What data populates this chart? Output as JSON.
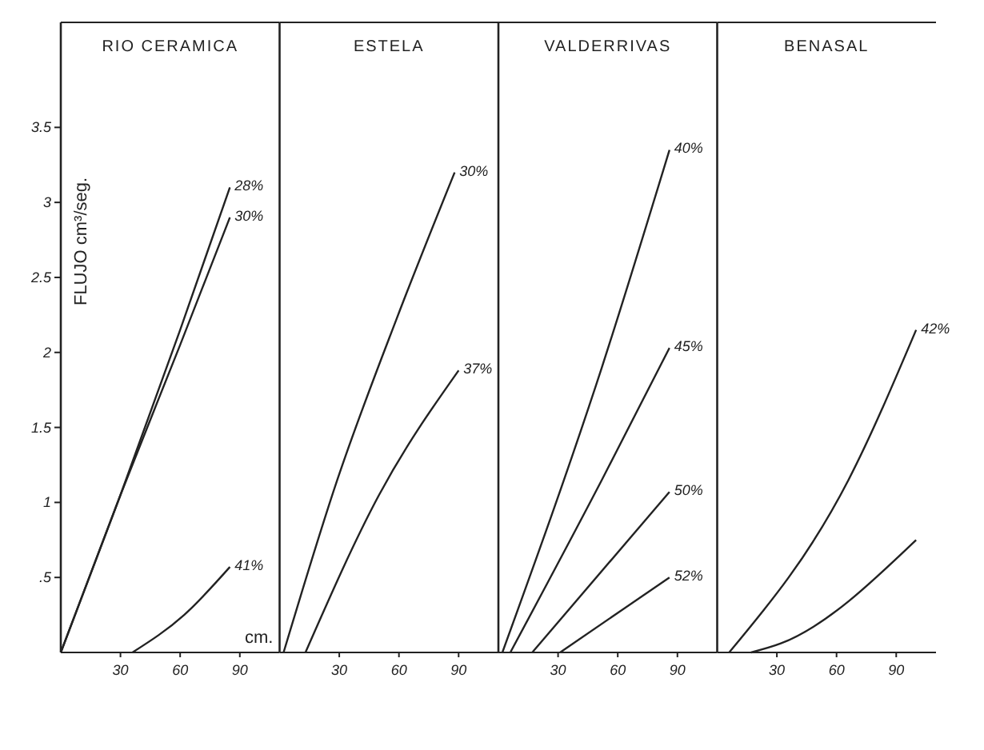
{
  "chart_data": [
    {
      "type": "line",
      "title": "RIO CERAMICA",
      "xlabel": "cm.",
      "ylabel": "FLUJO cm³/seg.",
      "xlim": [
        0,
        110
      ],
      "xticks": [
        30,
        60,
        90
      ],
      "ylim": [
        0,
        4.2
      ],
      "yticks": [
        {
          "value": 0.5,
          "label": ".5"
        },
        1,
        1.5,
        2,
        2.5,
        3,
        3.5
      ],
      "series": [
        {
          "name": "28%",
          "color": "#222222",
          "x": [
            0,
            30,
            60,
            85
          ],
          "values": [
            0,
            1.05,
            2.15,
            3.1
          ]
        },
        {
          "name": "30%",
          "color": "#222222",
          "x": [
            0,
            30,
            60,
            85
          ],
          "values": [
            0,
            1.05,
            2.05,
            2.9
          ]
        },
        {
          "name": "41%",
          "color": "#222222",
          "x": [
            36,
            62,
            85
          ],
          "values": [
            0,
            0.25,
            0.57
          ]
        }
      ]
    },
    {
      "type": "line",
      "title": "ESTELA",
      "xlim": [
        0,
        110
      ],
      "xticks": [
        30,
        60,
        90
      ],
      "ylim": [
        0,
        4.2
      ],
      "tick_labels": "x",
      "series": [
        {
          "name": "30%",
          "color": "#222222",
          "x": [
            2,
            29,
            59,
            88
          ],
          "values": [
            0,
            1.15,
            2.23,
            3.2
          ]
        },
        {
          "name": "37%",
          "color": "#222222",
          "x": [
            13,
            50,
            90
          ],
          "values": [
            0,
            1.05,
            1.88
          ]
        }
      ]
    },
    {
      "type": "line",
      "title": "VALDERRIVAS",
      "xlim": [
        0,
        110
      ],
      "xticks": [
        30,
        60,
        90
      ],
      "ylim": [
        0,
        4.2
      ],
      "tick_labels": "x",
      "series": [
        {
          "name": "40%",
          "color": "#222222",
          "x": [
            2,
            52,
            86
          ],
          "values": [
            0,
            1.9,
            3.35
          ]
        },
        {
          "name": "45%",
          "color": "#222222",
          "x": [
            6,
            52,
            86
          ],
          "values": [
            0,
            1.15,
            2.03
          ]
        },
        {
          "name": "50%",
          "color": "#222222",
          "x": [
            17,
            86
          ],
          "values": [
            0,
            1.07
          ]
        },
        {
          "name": "52%",
          "color": "#222222",
          "x": [
            31,
            86
          ],
          "values": [
            0,
            0.5
          ]
        }
      ]
    },
    {
      "type": "line",
      "title": "BENASAL",
      "xlim": [
        0,
        110
      ],
      "xticks": [
        30,
        60,
        90
      ],
      "ylim": [
        0,
        4.2
      ],
      "tick_labels": "x",
      "series": [
        {
          "name": "42%",
          "color": "#222222",
          "x": [
            6,
            66,
            100
          ],
          "values": [
            0,
            1.15,
            2.15
          ]
        },
        {
          "color": "#222222",
          "x": [
            17,
            32,
            100
          ],
          "values": [
            0,
            0.06,
            0.75
          ]
        }
      ]
    }
  ]
}
